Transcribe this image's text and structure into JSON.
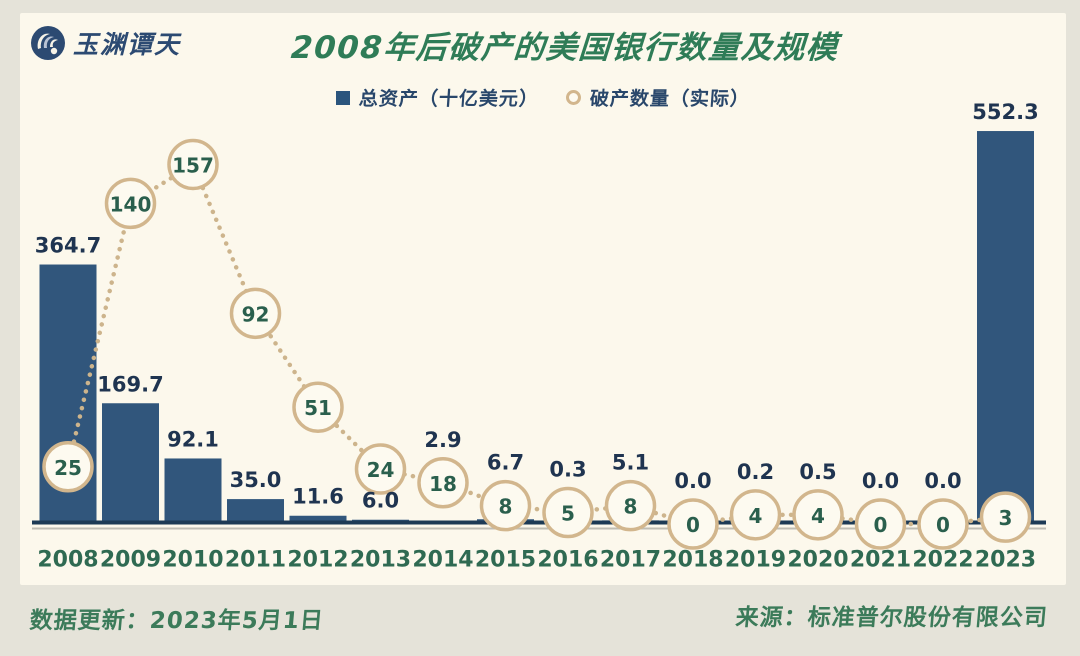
{
  "header": {
    "logo_text": "玉渊谭天",
    "title": "2008年后破产的美国银行数量及规模"
  },
  "legend": {
    "bars_label": "总资产（十亿美元）",
    "line_label": "破产数量（实际）"
  },
  "footer": {
    "updated": "数据更新：2023年5月1日",
    "source": "来源：标准普尔股份有限公司"
  },
  "colors": {
    "canvas_bg": "#e5e3d9",
    "card_bg": "#fcf8ec",
    "bar_fill": "#31567c",
    "bar_value_label": "#1f3450",
    "circle_border": "#d2b68d",
    "circle_fill": "#fdfaf0",
    "circle_text": "#2a5f4d",
    "dotted_line": "#cdb48c",
    "axis_line": "#1d3a55",
    "axis_shadow": "#bfbdb3",
    "title_green": "#2f7c57",
    "year_label_green": "#2f6a52",
    "footer_green": "#3c7b5a",
    "legend_navy": "#29476b"
  },
  "chart_data": {
    "type": "bar+line",
    "title": "2008年后破产的美国银行数量及规模",
    "xlabel": "",
    "ylabel": "",
    "legend_position": "top",
    "grid": false,
    "categories": [
      "2008",
      "2009",
      "2010",
      "2011",
      "2012",
      "2013",
      "2014",
      "2015",
      "2016",
      "2017",
      "2018",
      "2019",
      "2020",
      "2021",
      "2022",
      "2023"
    ],
    "series": [
      {
        "name": "总资产（十亿美元）",
        "type": "bar",
        "values": [
          364.7,
          169.7,
          92.1,
          35.0,
          11.6,
          6.0,
          2.9,
          6.7,
          0.3,
          5.1,
          0.0,
          0.2,
          0.5,
          0.0,
          0.0,
          552.3
        ],
        "label_format": "fixed1"
      },
      {
        "name": "破产数量（实际）",
        "type": "line-circle-markers",
        "values": [
          25,
          140,
          157,
          92,
          51,
          24,
          18,
          8,
          5,
          8,
          0,
          4,
          4,
          0,
          0,
          3
        ],
        "label_format": "integer",
        "line_style": "dotted"
      }
    ],
    "bar_axis_range": [
      0,
      560
    ],
    "count_axis_range": [
      0,
      175
    ]
  }
}
